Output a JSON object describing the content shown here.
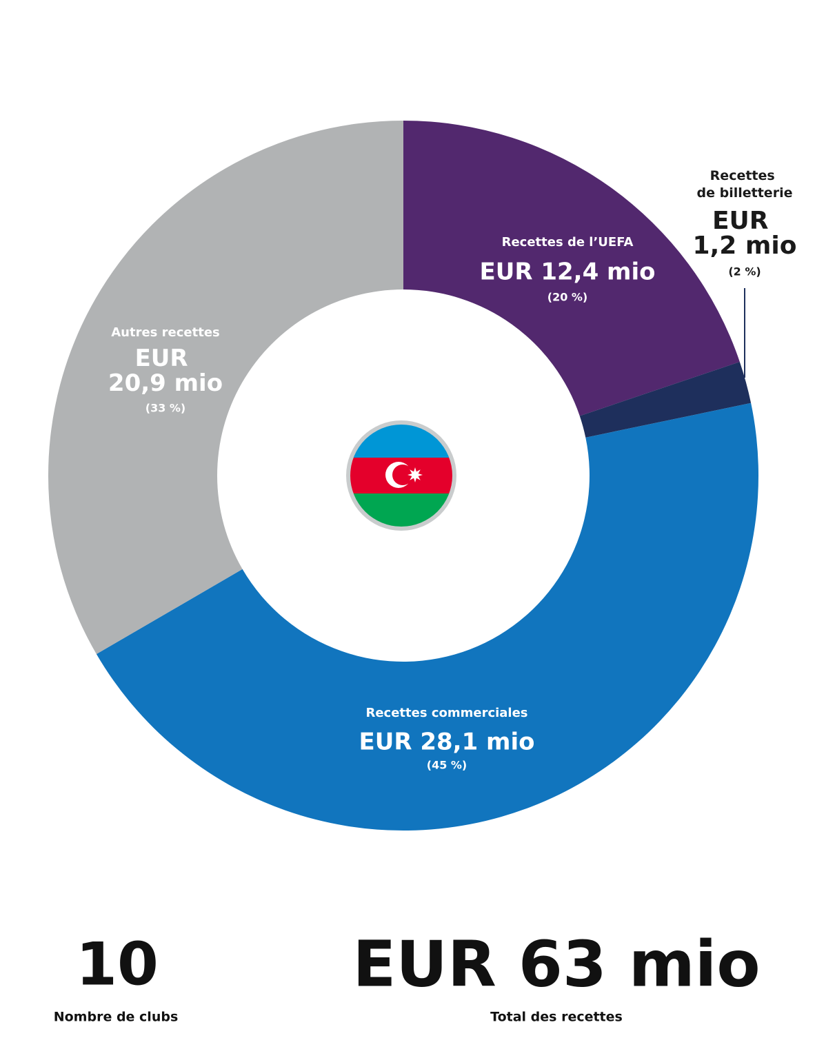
{
  "chart_data": {
    "type": "pie",
    "donut": true,
    "categories": [
      "Recettes de l’UEFA",
      "Recettes de billetterie",
      "Recettes commerciales",
      "Autres recettes"
    ],
    "values": [
      12.4,
      1.2,
      28.1,
      20.9
    ],
    "value_labels": [
      "EUR 12,4 mio",
      "EUR 1,2 mio",
      "EUR 28,1 mio",
      "EUR 20,9 mio"
    ],
    "percentage_labels": [
      "(20 %)",
      "(2 %)",
      "(45 %)",
      "(33 %)"
    ],
    "colors": [
      "#52286e",
      "#1e2f5c",
      "#1175be",
      "#b1b3b4"
    ]
  },
  "stats": [
    {
      "value": 10,
      "label": "Nombre de clubs"
    },
    {
      "value": "EUR 63 mio",
      "label": "Total des recettes"
    }
  ]
}
